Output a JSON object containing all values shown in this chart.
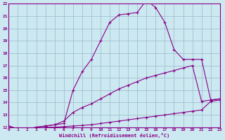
{
  "xlabel": "Windchill (Refroidissement éolien,°C)",
  "bg_color": "#cce8f0",
  "line_color": "#880088",
  "grid_color": "#99bbcc",
  "xmin": 0,
  "xmax": 23,
  "ymin": 12,
  "ymax": 22,
  "series": [
    {
      "x": [
        0,
        1,
        2,
        3,
        4,
        5,
        6,
        7,
        8,
        9,
        10,
        11,
        12,
        13,
        14,
        15,
        16,
        17,
        18,
        19,
        20,
        21,
        22,
        23
      ],
      "y": [
        12.1,
        11.85,
        11.85,
        11.9,
        12.0,
        12.0,
        12.05,
        12.1,
        12.15,
        12.2,
        12.3,
        12.4,
        12.5,
        12.6,
        12.7,
        12.8,
        12.9,
        13.0,
        13.1,
        13.2,
        13.3,
        13.4,
        14.1,
        14.2
      ]
    },
    {
      "x": [
        0,
        1,
        2,
        3,
        4,
        5,
        6,
        7,
        8,
        9,
        10,
        11,
        12,
        13,
        14,
        15,
        16,
        17,
        18,
        19,
        20,
        21,
        22,
        23
      ],
      "y": [
        12.1,
        11.85,
        11.85,
        12.0,
        12.1,
        12.2,
        12.5,
        13.2,
        13.6,
        13.9,
        14.3,
        14.7,
        15.1,
        15.4,
        15.7,
        16.0,
        16.2,
        16.4,
        16.6,
        16.8,
        17.0,
        14.1,
        14.2,
        14.3
      ]
    },
    {
      "x": [
        0,
        1,
        2,
        3,
        4,
        5,
        6,
        7,
        8,
        9,
        10,
        11,
        12,
        13,
        14,
        15,
        16,
        17,
        18,
        19,
        20,
        21,
        22,
        23
      ],
      "y": [
        12.1,
        11.85,
        11.85,
        12.0,
        12.1,
        12.2,
        12.3,
        15.0,
        16.5,
        17.5,
        19.0,
        20.5,
        21.1,
        21.2,
        21.3,
        22.3,
        21.7,
        20.5,
        18.3,
        17.5,
        17.5,
        17.5,
        14.2,
        14.3
      ]
    }
  ],
  "xtick_labels": [
    "0",
    "1",
    "2",
    "3",
    "4",
    "5",
    "6",
    "7",
    "8",
    "9",
    "10",
    "11",
    "12",
    "13",
    "14",
    "15",
    "16",
    "17",
    "18",
    "19",
    "20",
    "21",
    "22",
    "23"
  ],
  "ytick_labels": [
    "12",
    "13",
    "14",
    "15",
    "16",
    "17",
    "18",
    "19",
    "20",
    "21",
    "22"
  ],
  "marker": "+"
}
